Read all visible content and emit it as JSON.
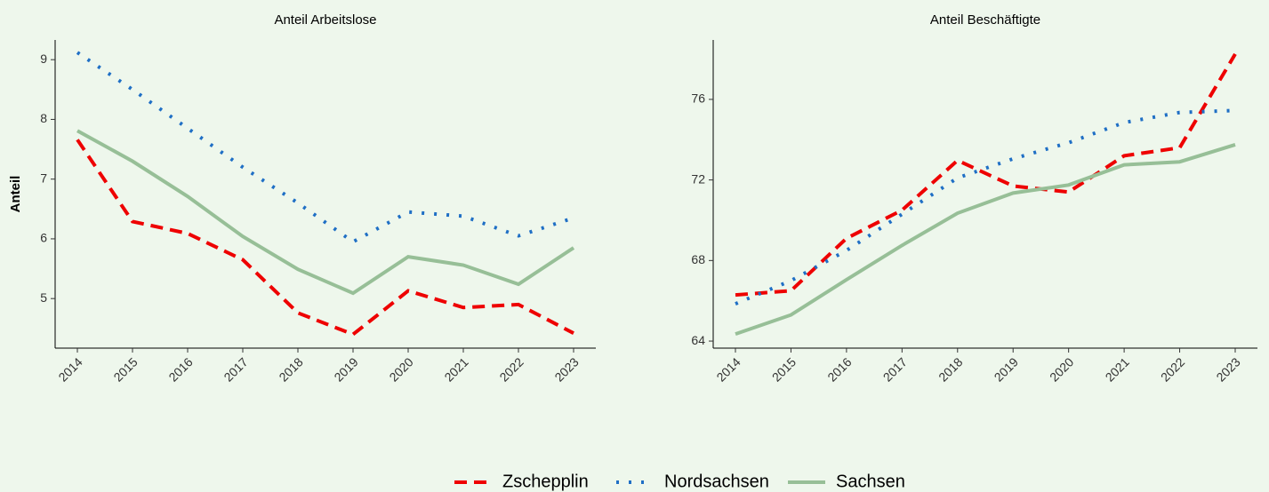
{
  "chart_data": [
    {
      "type": "line",
      "title": "Anteil Arbeitslose",
      "y_label": "Anteil",
      "categories": [
        "2014",
        "2015",
        "2016",
        "2017",
        "2018",
        "2019",
        "2020",
        "2021",
        "2022",
        "2023"
      ],
      "series": [
        {
          "values": [
            7.66,
            6.29,
            6.09,
            5.65,
            4.76,
            4.4,
            5.13,
            4.85,
            4.9,
            4.42
          ]
        },
        {
          "values": [
            9.12,
            8.5,
            7.85,
            7.2,
            6.6,
            5.95,
            6.45,
            6.38,
            6.05,
            6.35
          ]
        },
        {
          "values": [
            7.81,
            7.3,
            6.71,
            6.04,
            5.49,
            5.09,
            5.7,
            5.56,
            5.24,
            5.85
          ]
        }
      ],
      "ylim": [
        4.17,
        9.33
      ],
      "yticks": [
        5,
        6,
        7,
        8,
        9
      ]
    },
    {
      "type": "line",
      "title": "Anteil Beschäftigte",
      "categories": [
        "2014",
        "2015",
        "2016",
        "2017",
        "2018",
        "2019",
        "2020",
        "2021",
        "2022",
        "2023"
      ],
      "series": [
        {
          "values": [
            66.29,
            66.5,
            69.1,
            70.5,
            72.97,
            71.7,
            71.4,
            73.2,
            73.6,
            78.25
          ]
        },
        {
          "values": [
            65.85,
            67.0,
            68.5,
            70.3,
            72.1,
            73.05,
            73.85,
            74.85,
            75.35,
            75.45
          ]
        },
        {
          "values": [
            64.35,
            65.3,
            67.05,
            68.75,
            70.35,
            71.35,
            71.75,
            72.75,
            72.9,
            73.75
          ]
        }
      ],
      "ylim": [
        63.65,
        78.95
      ],
      "yticks": [
        64,
        68,
        72,
        76
      ]
    }
  ],
  "legend": [
    {
      "name": "Zschepplin",
      "color": "#ee0000",
      "dash": "14,8"
    },
    {
      "name": "Nordsachsen",
      "color": "#1f6fc5",
      "dash": "3,11"
    },
    {
      "name": "Sachsen",
      "color": "#97bf97",
      "dash": "none"
    }
  ]
}
